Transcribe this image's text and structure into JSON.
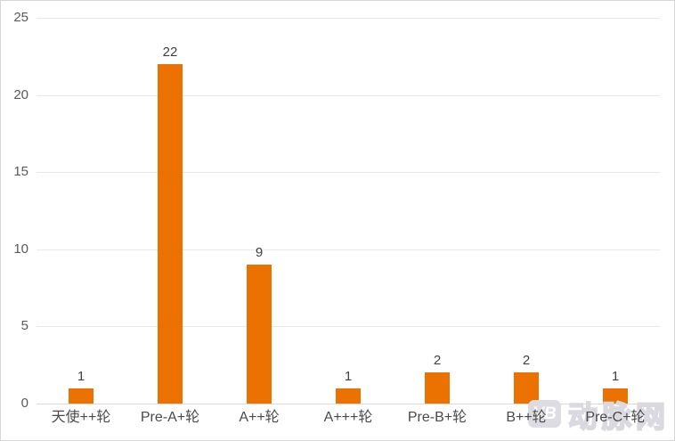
{
  "chart_data": {
    "type": "bar",
    "categories": [
      "天使++轮",
      "Pre-A+轮",
      "A++轮",
      "A+++轮",
      "Pre-B+轮",
      "B++轮",
      "Pre-C+轮"
    ],
    "values": [
      1,
      22,
      9,
      1,
      2,
      2,
      1
    ],
    "value_labels": [
      "1",
      "22",
      "9",
      "1",
      "2",
      "2",
      "1"
    ],
    "title": "",
    "xlabel": "",
    "ylabel": "",
    "ylim": [
      0,
      25
    ],
    "yticks": [
      0,
      5,
      10,
      15,
      20,
      25
    ],
    "grid": true,
    "legend": "none",
    "bar_color": "#eb7100"
  },
  "colors": {
    "bar": "#eb7100",
    "gridline": "#e9e9e9",
    "axis_line": "#d9d9d9",
    "tick_label": "#595959",
    "value_label": "#404040",
    "category_label": "#4a4a4a",
    "border": "#d6d6d6",
    "watermark": "#dcdce2"
  },
  "watermark": {
    "logo_text": "VB",
    "text": "动脉网"
  }
}
